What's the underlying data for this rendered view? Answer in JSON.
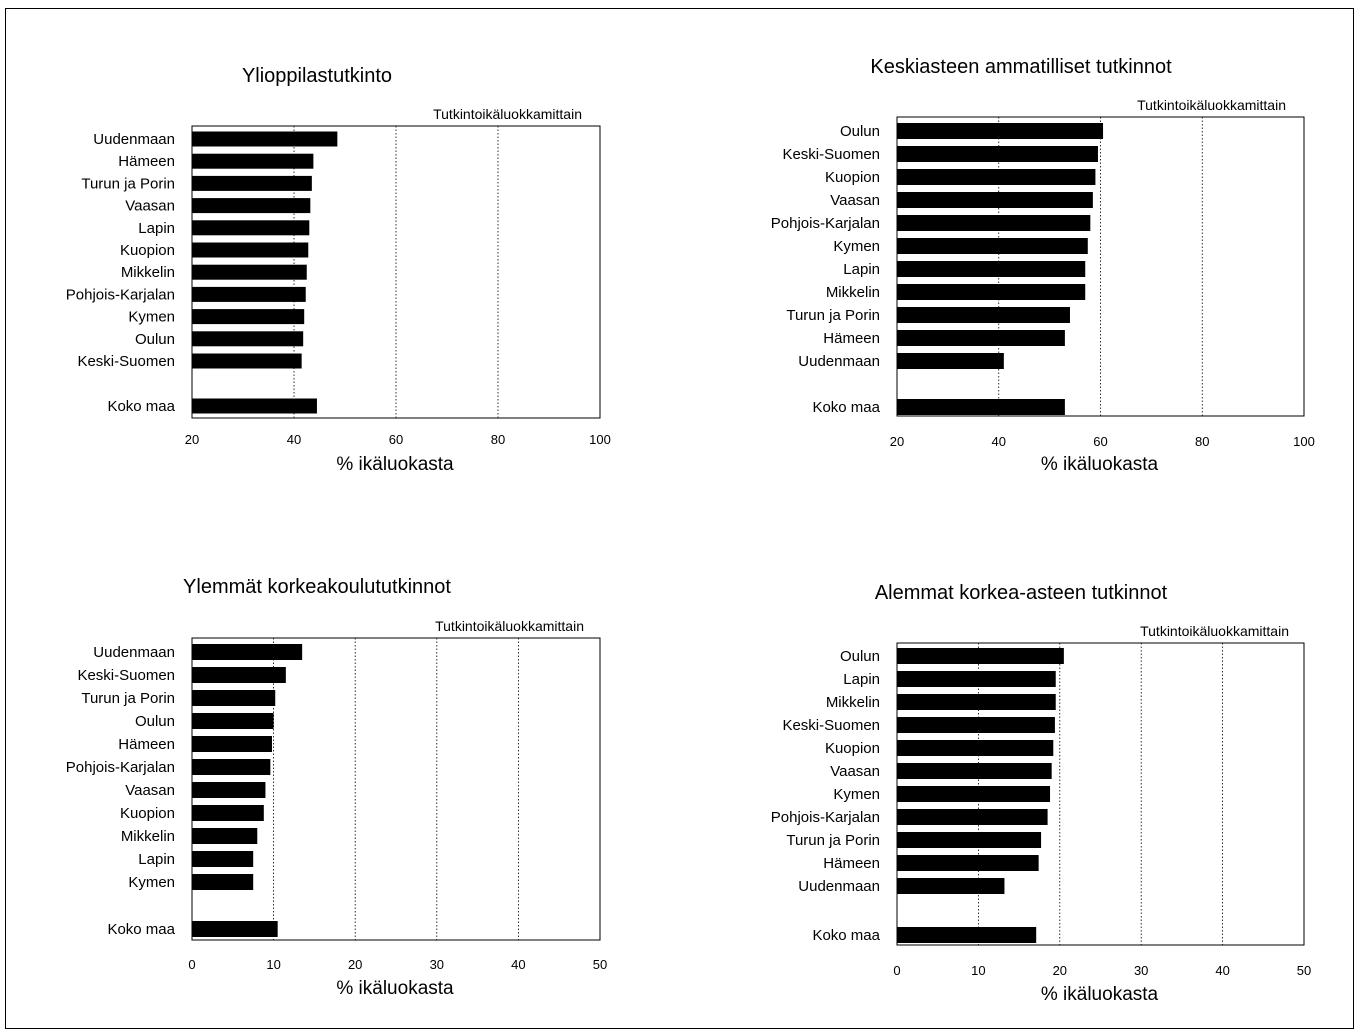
{
  "chart_data": [
    {
      "type": "bar",
      "orientation": "horizontal",
      "title": "Ylioppilastutkinto",
      "subtitle": "Tutkintoikäluokkamittain",
      "xlabel": "% ikäluokasta",
      "xlim": [
        20,
        100
      ],
      "xticks": [
        20,
        40,
        60,
        80,
        100
      ],
      "grid": true,
      "categories": [
        "Uudenmaan",
        "Hämeen",
        "Turun ja Porin",
        "Vaasan",
        "Lapin",
        "Kuopion",
        "Mikkelin",
        "Pohjois-Karjalan",
        "Kymen",
        "Oulun",
        "Keski-Suomen",
        "Koko maa"
      ],
      "values": [
        48.5,
        43.8,
        43.5,
        43.2,
        43.0,
        42.8,
        42.5,
        42.3,
        42.0,
        41.8,
        41.5,
        44.5
      ]
    },
    {
      "type": "bar",
      "orientation": "horizontal",
      "title": "Keskiasteen ammatilliset tutkinnot",
      "subtitle": "Tutkintoikäluokkamittain",
      "xlabel": "% ikäluokasta",
      "xlim": [
        20,
        100
      ],
      "xticks": [
        20,
        40,
        60,
        80,
        100
      ],
      "grid": true,
      "categories": [
        "Oulun",
        "Keski-Suomen",
        "Kuopion",
        "Vaasan",
        "Pohjois-Karjalan",
        "Kymen",
        "Lapin",
        "Mikkelin",
        "Turun ja Porin",
        "Hämeen",
        "Uudenmaan",
        "Koko maa"
      ],
      "values": [
        60.5,
        59.5,
        59.0,
        58.5,
        58.0,
        57.5,
        57.0,
        57.0,
        54.0,
        53.0,
        41.0,
        53.0
      ]
    },
    {
      "type": "bar",
      "orientation": "horizontal",
      "title": "Ylemmät korkeakoulututkinnot",
      "subtitle": "Tutkintoikäluokkamittain",
      "xlabel": "% ikäluokasta",
      "xlim": [
        0,
        50
      ],
      "xticks": [
        0,
        10,
        20,
        30,
        40,
        50
      ],
      "grid": true,
      "categories": [
        "Uudenmaan",
        "Keski-Suomen",
        "Turun ja Porin",
        "Oulun",
        "Hämeen",
        "Pohjois-Karjalan",
        "Vaasan",
        "Kuopion",
        "Mikkelin",
        "Lapin",
        "Kymen",
        "Koko maa"
      ],
      "values": [
        13.5,
        11.5,
        10.2,
        10.0,
        9.8,
        9.6,
        9.0,
        8.8,
        8.0,
        7.5,
        7.5,
        10.5
      ]
    },
    {
      "type": "bar",
      "orientation": "horizontal",
      "title": "Alemmat korkea-asteen tutkinnot",
      "subtitle": "Tutkintoikäluokkamittain",
      "xlabel": "% ikäluokasta",
      "xlim": [
        0,
        50
      ],
      "xticks": [
        0,
        10,
        20,
        30,
        40,
        50
      ],
      "grid": true,
      "categories": [
        "Oulun",
        "Lapin",
        "Mikkelin",
        "Keski-Suomen",
        "Kuopion",
        "Vaasan",
        "Kymen",
        "Pohjois-Karjalan",
        "Turun ja Porin",
        "Hämeen",
        "Uudenmaan",
        "Koko maa"
      ],
      "values": [
        20.5,
        19.5,
        19.5,
        19.4,
        19.2,
        19.0,
        18.8,
        18.5,
        17.7,
        17.4,
        13.2,
        17.1
      ]
    }
  ]
}
